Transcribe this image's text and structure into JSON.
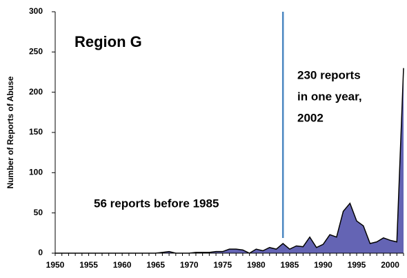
{
  "chart_data": {
    "type": "area",
    "title": "Region G",
    "y_label": "Number of Reports of Abuse",
    "annotations": {
      "right": [
        "230 reports",
        "in one year,",
        "2002"
      ],
      "left": "56 reports before 1985"
    },
    "marker_x": 1984,
    "marker_color": "#4a86c0",
    "x": [
      1950,
      1951,
      1952,
      1953,
      1954,
      1955,
      1956,
      1957,
      1958,
      1959,
      1960,
      1961,
      1962,
      1963,
      1964,
      1965,
      1966,
      1967,
      1968,
      1969,
      1970,
      1971,
      1972,
      1973,
      1974,
      1975,
      1976,
      1977,
      1978,
      1979,
      1980,
      1981,
      1982,
      1983,
      1984,
      1985,
      1986,
      1987,
      1988,
      1989,
      1990,
      1991,
      1992,
      1993,
      1994,
      1995,
      1996,
      1997,
      1998,
      1999,
      2000,
      2001,
      2002
    ],
    "series": [
      {
        "name": "Reports",
        "color": "#6464b4",
        "values": [
          0,
          0,
          0,
          0,
          0,
          0,
          0,
          0,
          0,
          0,
          0,
          0,
          0,
          0,
          0,
          0,
          1,
          2,
          0,
          0,
          0,
          1,
          1,
          1,
          2,
          2,
          5,
          5,
          4,
          0,
          5,
          3,
          7,
          5,
          12,
          5,
          9,
          8,
          20,
          7,
          11,
          23,
          20,
          52,
          62,
          40,
          34,
          12,
          14,
          19,
          16,
          14,
          230
        ]
      }
    ],
    "xlim": [
      1950,
      2002
    ],
    "xticks": [
      1950,
      1955,
      1960,
      1965,
      1970,
      1975,
      1980,
      1985,
      1990,
      1995,
      2000
    ],
    "ylim": [
      0,
      300
    ],
    "yticks": [
      0,
      50,
      100,
      150,
      200,
      250,
      300
    ]
  }
}
